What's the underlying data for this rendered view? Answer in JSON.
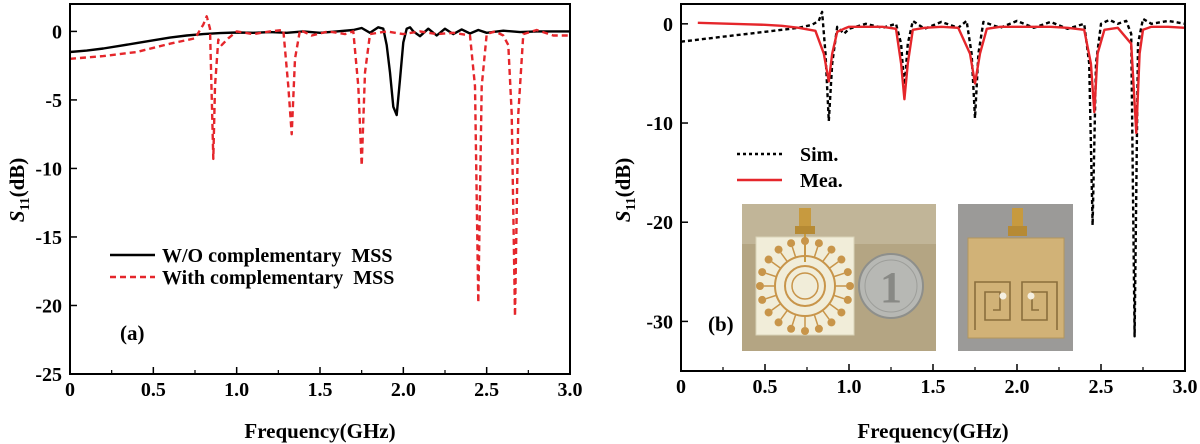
{
  "chart_data": [
    {
      "panel_label": "(a)",
      "type": "line",
      "xlabel": "Frequency(GHz)",
      "ylabel_main": "S",
      "ylabel_sub": "11",
      "ylabel_unit": "(dB)",
      "xlim": [
        0,
        3.0
      ],
      "ylim": [
        -25,
        2
      ],
      "xticks": [
        0,
        0.5,
        1.0,
        1.5,
        2.0,
        2.5,
        3.0
      ],
      "xtick_labels": [
        "0",
        "0.5",
        "1.0",
        "1.5",
        "2.0",
        "2.5",
        "3.0"
      ],
      "yticks": [
        0,
        -5,
        -10,
        -15,
        -20,
        -25
      ],
      "ytick_labels": [
        "0",
        "-5",
        "-10",
        "-15",
        "-20",
        "-25"
      ],
      "legend_position": "lower-left",
      "series": [
        {
          "name": "W/O complementary  MSS",
          "color": "#000000",
          "style": "solid",
          "x": [
            0,
            0.1,
            0.2,
            0.3,
            0.4,
            0.5,
            0.6,
            0.7,
            0.8,
            0.9,
            1.0,
            1.1,
            1.2,
            1.3,
            1.4,
            1.5,
            1.6,
            1.7,
            1.75,
            1.8,
            1.85,
            1.88,
            1.9,
            1.92,
            1.94,
            1.96,
            1.98,
            2.0,
            2.02,
            2.04,
            2.06,
            2.1,
            2.15,
            2.2,
            2.25,
            2.3,
            2.35,
            2.4,
            2.45,
            2.5,
            2.6,
            2.7,
            2.8,
            2.9,
            3.0
          ],
          "values": [
            -1.5,
            -1.4,
            -1.25,
            -1.05,
            -0.85,
            -0.65,
            -0.45,
            -0.3,
            -0.2,
            -0.12,
            -0.08,
            -0.1,
            -0.05,
            -0.1,
            0.0,
            -0.1,
            0.0,
            0.1,
            0.25,
            -0.1,
            0.3,
            0.2,
            -1.0,
            -3.0,
            -5.5,
            -6.1,
            -3.5,
            -0.8,
            0.2,
            0.3,
            0.0,
            -0.35,
            0.2,
            -0.3,
            0.2,
            -0.2,
            0.15,
            -0.15,
            0.1,
            -0.1,
            0.05,
            -0.05,
            0.0,
            0.0,
            0.0
          ]
        },
        {
          "name": "With complementary  MSS",
          "color": "#e5262b",
          "style": "dashed",
          "x": [
            0,
            0.2,
            0.4,
            0.6,
            0.75,
            0.8,
            0.82,
            0.84,
            0.86,
            0.87,
            0.89,
            0.91,
            0.95,
            1.0,
            1.1,
            1.2,
            1.28,
            1.31,
            1.33,
            1.35,
            1.38,
            1.45,
            1.55,
            1.65,
            1.7,
            1.73,
            1.75,
            1.77,
            1.8,
            1.9,
            2.0,
            2.1,
            2.2,
            2.3,
            2.4,
            2.43,
            2.45,
            2.47,
            2.5,
            2.55,
            2.6,
            2.63,
            2.65,
            2.67,
            2.69,
            2.72,
            2.8,
            2.9,
            3.0
          ],
          "values": [
            -2.0,
            -1.8,
            -1.5,
            -0.9,
            -0.5,
            0.5,
            1.1,
            0.2,
            -9.3,
            -4.0,
            -0.6,
            -1.0,
            -0.5,
            0.0,
            -0.2,
            0.0,
            0.1,
            -4.0,
            -7.5,
            -2.0,
            0.1,
            -0.3,
            0.0,
            -0.2,
            0.0,
            -4.0,
            -9.8,
            -3.0,
            -0.2,
            0.0,
            -0.2,
            0.0,
            -0.2,
            -0.1,
            -0.3,
            -4.0,
            -19.8,
            -4.0,
            -0.2,
            0.0,
            -0.3,
            -1.0,
            -6.0,
            -20.8,
            -6.0,
            -0.2,
            0.1,
            -0.3,
            -0.3
          ]
        }
      ]
    },
    {
      "panel_label": "(b)",
      "type": "line",
      "xlabel": "Frequency(GHz)",
      "ylabel_main": "S",
      "ylabel_sub": "11",
      "ylabel_unit": "(dB)",
      "xlim": [
        0,
        3.0
      ],
      "ylim": [
        -35,
        2
      ],
      "xticks": [
        0,
        0.5,
        1.0,
        1.5,
        2.0,
        2.5,
        3.0
      ],
      "xtick_labels": [
        "0",
        "0.5",
        "1.0",
        "1.5",
        "2.0",
        "2.5",
        "3.0"
      ],
      "yticks": [
        0,
        -10,
        -20,
        -30
      ],
      "ytick_labels": [
        "0",
        "-10",
        "-20",
        "-30"
      ],
      "legend_position": "center-left",
      "series": [
        {
          "name": "Sim.",
          "color": "#000000",
          "style": "dotted",
          "x": [
            0,
            0.1,
            0.2,
            0.3,
            0.4,
            0.5,
            0.6,
            0.7,
            0.78,
            0.82,
            0.84,
            0.86,
            0.88,
            0.9,
            0.93,
            0.97,
            1.0,
            1.1,
            1.2,
            1.28,
            1.31,
            1.33,
            1.35,
            1.38,
            1.45,
            1.55,
            1.65,
            1.7,
            1.73,
            1.75,
            1.77,
            1.8,
            1.9,
            2.0,
            2.1,
            2.2,
            2.3,
            2.4,
            2.43,
            2.45,
            2.47,
            2.5,
            2.55,
            2.6,
            2.65,
            2.68,
            2.7,
            2.72,
            2.75,
            2.8,
            2.9,
            3.0
          ],
          "values": [
            -1.8,
            -1.6,
            -1.4,
            -1.2,
            -1.0,
            -0.8,
            -0.6,
            -0.4,
            -0.1,
            0.3,
            1.2,
            -3.0,
            -9.8,
            -4.0,
            -0.3,
            -1.0,
            -0.5,
            0.0,
            -0.4,
            0.0,
            -2.0,
            -6.5,
            -2.0,
            0.3,
            -0.5,
            0.2,
            -0.4,
            0.3,
            -3.0,
            -9.5,
            -3.0,
            0.2,
            -0.4,
            0.3,
            -0.4,
            0.2,
            -0.5,
            0.0,
            -4.0,
            -20.3,
            -4.0,
            0.0,
            0.4,
            0.0,
            0.3,
            -1.0,
            -31.5,
            -2.0,
            0.5,
            0.0,
            0.3,
            0.0
          ]
        },
        {
          "name": "Mea.",
          "color": "#e5262b",
          "style": "solid",
          "x": [
            0.1,
            0.2,
            0.3,
            0.4,
            0.5,
            0.6,
            0.7,
            0.8,
            0.85,
            0.88,
            0.9,
            0.93,
            0.97,
            1.0,
            1.1,
            1.2,
            1.28,
            1.31,
            1.33,
            1.35,
            1.38,
            1.45,
            1.55,
            1.65,
            1.72,
            1.75,
            1.78,
            1.82,
            1.9,
            2.0,
            2.1,
            2.2,
            2.3,
            2.4,
            2.44,
            2.46,
            2.48,
            2.52,
            2.6,
            2.68,
            2.71,
            2.73,
            2.75,
            2.8,
            2.9,
            3.0
          ],
          "values": [
            0.1,
            0.05,
            0.0,
            -0.05,
            -0.1,
            -0.2,
            -0.4,
            -0.7,
            -3.0,
            -5.8,
            -3.0,
            -0.8,
            -0.5,
            -0.3,
            -0.3,
            -0.3,
            -0.5,
            -4.0,
            -7.6,
            -4.0,
            -0.6,
            -0.4,
            -0.3,
            -0.4,
            -3.0,
            -6.0,
            -3.0,
            -0.5,
            -0.3,
            -0.3,
            -0.3,
            -0.3,
            -0.4,
            -0.6,
            -4.0,
            -8.9,
            -3.0,
            -0.6,
            -0.4,
            -2.0,
            -11.0,
            -3.0,
            -0.6,
            -0.3,
            -0.3,
            -0.4
          ]
        }
      ]
    }
  ]
}
